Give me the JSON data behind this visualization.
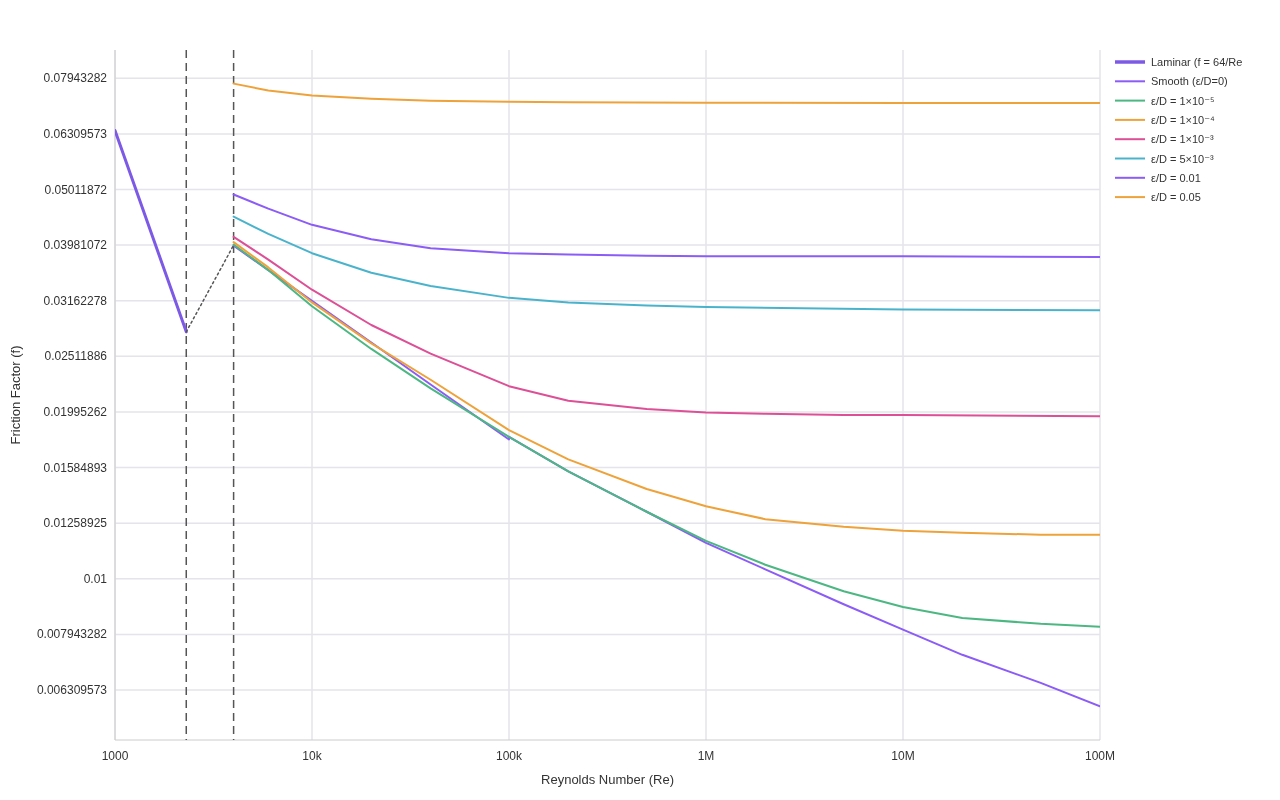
{
  "chart_data": {
    "type": "line",
    "xlabel": "Reynolds Number (Re)",
    "ylabel": "Friction Factor (f)",
    "log": "xy",
    "grid": true,
    "legend": "top right",
    "marker": "none",
    "xlim": [
      1000,
      100000000
    ],
    "xticks": [
      1000,
      {
        "value": 10000,
        "label": "10k"
      },
      {
        "value": 100000,
        "label": "100k"
      },
      {
        "value": 1000000,
        "label": "1M"
      },
      {
        "value": 10000000,
        "label": "10M"
      },
      {
        "value": 100000000,
        "label": "100M"
      }
    ],
    "ylim": [
      0.00513,
      0.0893
    ],
    "yticks": [
      0.006309573,
      0.007943282,
      0.01,
      0.01258925,
      0.01584893,
      0.01995262,
      0.02511886,
      0.03162278,
      0.03981072,
      0.05011872,
      0.06309573,
      0.07943282
    ],
    "ref_lines": [
      {
        "axis": "x",
        "value": 2300,
        "color": "#555555",
        "line_style": "dashed"
      },
      {
        "axis": "x",
        "value": 4000,
        "color": "#555555",
        "line_style": "dashed"
      }
    ],
    "series": [
      {
        "name": "Laminar (f = 64/Re",
        "color": "#7c5ae6",
        "x": [
          1000,
          2300
        ],
        "values": [
          0.064,
          0.0278
        ]
      },
      {
        "name": "Smooth (ε/D=0)",
        "color": "#8b5cf6",
        "x": [
          4000,
          6000,
          10000,
          20000,
          40000,
          100000,
          100000,
          200000,
          500000,
          1000000,
          2000000,
          5000000,
          10000000,
          20000000,
          50000000,
          100000000
        ],
        "values": [
          0.0397,
          0.0359,
          0.0316,
          0.0266,
          0.02235,
          0.0178,
          0.018,
          0.0156,
          0.0132,
          0.0116,
          0.0104,
          0.009,
          0.0081,
          0.0073,
          0.0065,
          0.0059
        ]
      },
      {
        "name": "ε/D = 1×10⁻⁵",
        "color": "#4cb782",
        "x": [
          4000,
          6000,
          10000,
          20000,
          40000,
          100000,
          200000,
          500000,
          1000000,
          2000000,
          5000000,
          10000000,
          20000000,
          50000000,
          100000000
        ],
        "values": [
          0.0399,
          0.0359,
          0.0309,
          0.0259,
          0.022,
          0.018,
          0.0156,
          0.0132,
          0.0117,
          0.0106,
          0.0095,
          0.0089,
          0.0085,
          0.0083,
          0.0082
        ]
      },
      {
        "name": "ε/D = 1×10⁻⁴",
        "color": "#eea23a",
        "x": [
          4000,
          6000,
          10000,
          20000,
          40000,
          100000,
          200000,
          500000,
          1000000,
          2000000,
          5000000,
          10000000,
          20000000,
          50000000,
          100000000
        ],
        "values": [
          0.0403,
          0.0363,
          0.0314,
          0.0265,
          0.0228,
          0.0185,
          0.0164,
          0.0145,
          0.0135,
          0.0128,
          0.0124,
          0.0122,
          0.0121,
          0.012,
          0.012
        ]
      },
      {
        "name": "ε/D = 1×10⁻³",
        "color": "#dd4f96",
        "x": [
          4000,
          6000,
          10000,
          20000,
          40000,
          100000,
          200000,
          500000,
          1000000,
          2000000,
          5000000,
          10000000,
          100000000
        ],
        "values": [
          0.0412,
          0.0375,
          0.0331,
          0.0286,
          0.0254,
          0.0222,
          0.0209,
          0.0202,
          0.0199,
          0.0198,
          0.0197,
          0.0197,
          0.0196
        ]
      },
      {
        "name": "ε/D = 5×10⁻³",
        "color": "#4ab3cc",
        "x": [
          4000,
          6000,
          10000,
          20000,
          40000,
          100000,
          200000,
          500000,
          1000000,
          10000000,
          100000000
        ],
        "values": [
          0.0448,
          0.0417,
          0.0385,
          0.0355,
          0.0336,
          0.032,
          0.0314,
          0.031,
          0.0308,
          0.0305,
          0.0304
        ]
      },
      {
        "name": "ε/D = 0.01",
        "color": "#8b5cf6",
        "x": [
          4000,
          6000,
          10000,
          20000,
          40000,
          100000,
          200000,
          500000,
          1000000,
          10000000,
          100000000
        ],
        "values": [
          0.0491,
          0.0463,
          0.0433,
          0.0408,
          0.0393,
          0.0385,
          0.0383,
          0.0381,
          0.038,
          0.038,
          0.0379
        ]
      },
      {
        "name": "ε/D = 0.05",
        "color": "#eea23a",
        "x": [
          4000,
          6000,
          10000,
          20000,
          40000,
          100000,
          200000,
          1000000,
          10000000,
          100000000
        ],
        "values": [
          0.0777,
          0.0755,
          0.074,
          0.073,
          0.0724,
          0.0721,
          0.0719,
          0.0718,
          0.0717,
          0.0717
        ]
      },
      {
        "color": "#555555",
        "line_style": "dotted",
        "x": [
          2300,
          4000
        ],
        "values": [
          0.0278,
          0.0398
        ]
      }
    ]
  }
}
